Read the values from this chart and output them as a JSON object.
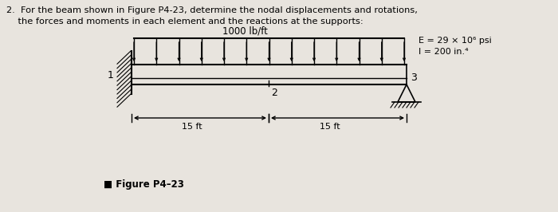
{
  "title_line1": "2.  For the beam shown in Figure P4-23, determine the nodal displacements and rotations,",
  "title_line2": "    the forces and moments in each element and the reactions at the supports:",
  "load_label": "1000 lb/ft",
  "E_label": "E = 29 × 10⁶ psi",
  "I_label": "I = 200 in.⁴",
  "dim_label1": "15 ft",
  "dim_label2": "15 ft",
  "node1": "1",
  "node2": "2",
  "node3": "3",
  "fig_label": "■ Figure P4–23",
  "bg_color": "#e8e4de",
  "text_color": "#111111"
}
